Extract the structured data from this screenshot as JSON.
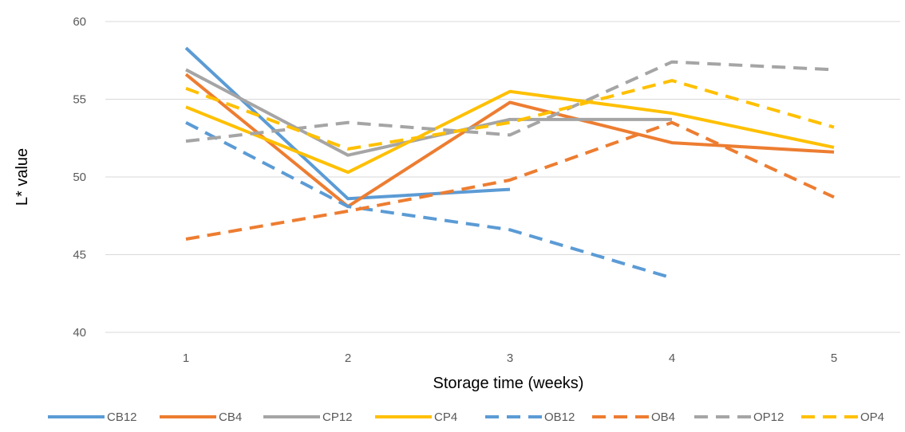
{
  "chart_data": {
    "type": "line",
    "title": "",
    "xlabel": "Storage time (weeks)",
    "ylabel": "L* value",
    "x": [
      1,
      2,
      3,
      4,
      5
    ],
    "xticks": [
      "1",
      "2",
      "3",
      "4",
      "5"
    ],
    "ylim": [
      40,
      60
    ],
    "yticks": [
      "40",
      "45",
      "50",
      "55",
      "60"
    ],
    "grid": "horizontal",
    "legend_position": "bottom",
    "series": [
      {
        "name": "CB12",
        "color": "#5B9BD5",
        "style": "solid",
        "values": [
          58.3,
          48.6,
          49.2,
          null,
          null
        ]
      },
      {
        "name": "CB4",
        "color": "#ED7D31",
        "style": "solid",
        "values": [
          56.6,
          48.1,
          54.8,
          52.2,
          51.6
        ]
      },
      {
        "name": "CP12",
        "color": "#A5A5A5",
        "style": "solid",
        "values": [
          56.9,
          51.4,
          53.7,
          53.7,
          null
        ]
      },
      {
        "name": "CP4",
        "color": "#FFC000",
        "style": "solid",
        "values": [
          54.5,
          50.3,
          55.5,
          54.1,
          51.9
        ]
      },
      {
        "name": "OB12",
        "color": "#5B9BD5",
        "style": "dashed",
        "values": [
          53.5,
          48.1,
          46.6,
          43.5,
          null
        ]
      },
      {
        "name": "OB4",
        "color": "#ED7D31",
        "style": "dashed",
        "values": [
          46.0,
          47.8,
          49.8,
          53.5,
          48.7
        ]
      },
      {
        "name": "OP12",
        "color": "#A5A5A5",
        "style": "dashed",
        "values": [
          52.3,
          53.5,
          52.7,
          57.4,
          56.9
        ]
      },
      {
        "name": "OP4",
        "color": "#FFC000",
        "style": "dashed",
        "values": [
          55.7,
          51.8,
          53.5,
          56.2,
          53.2
        ]
      }
    ]
  }
}
